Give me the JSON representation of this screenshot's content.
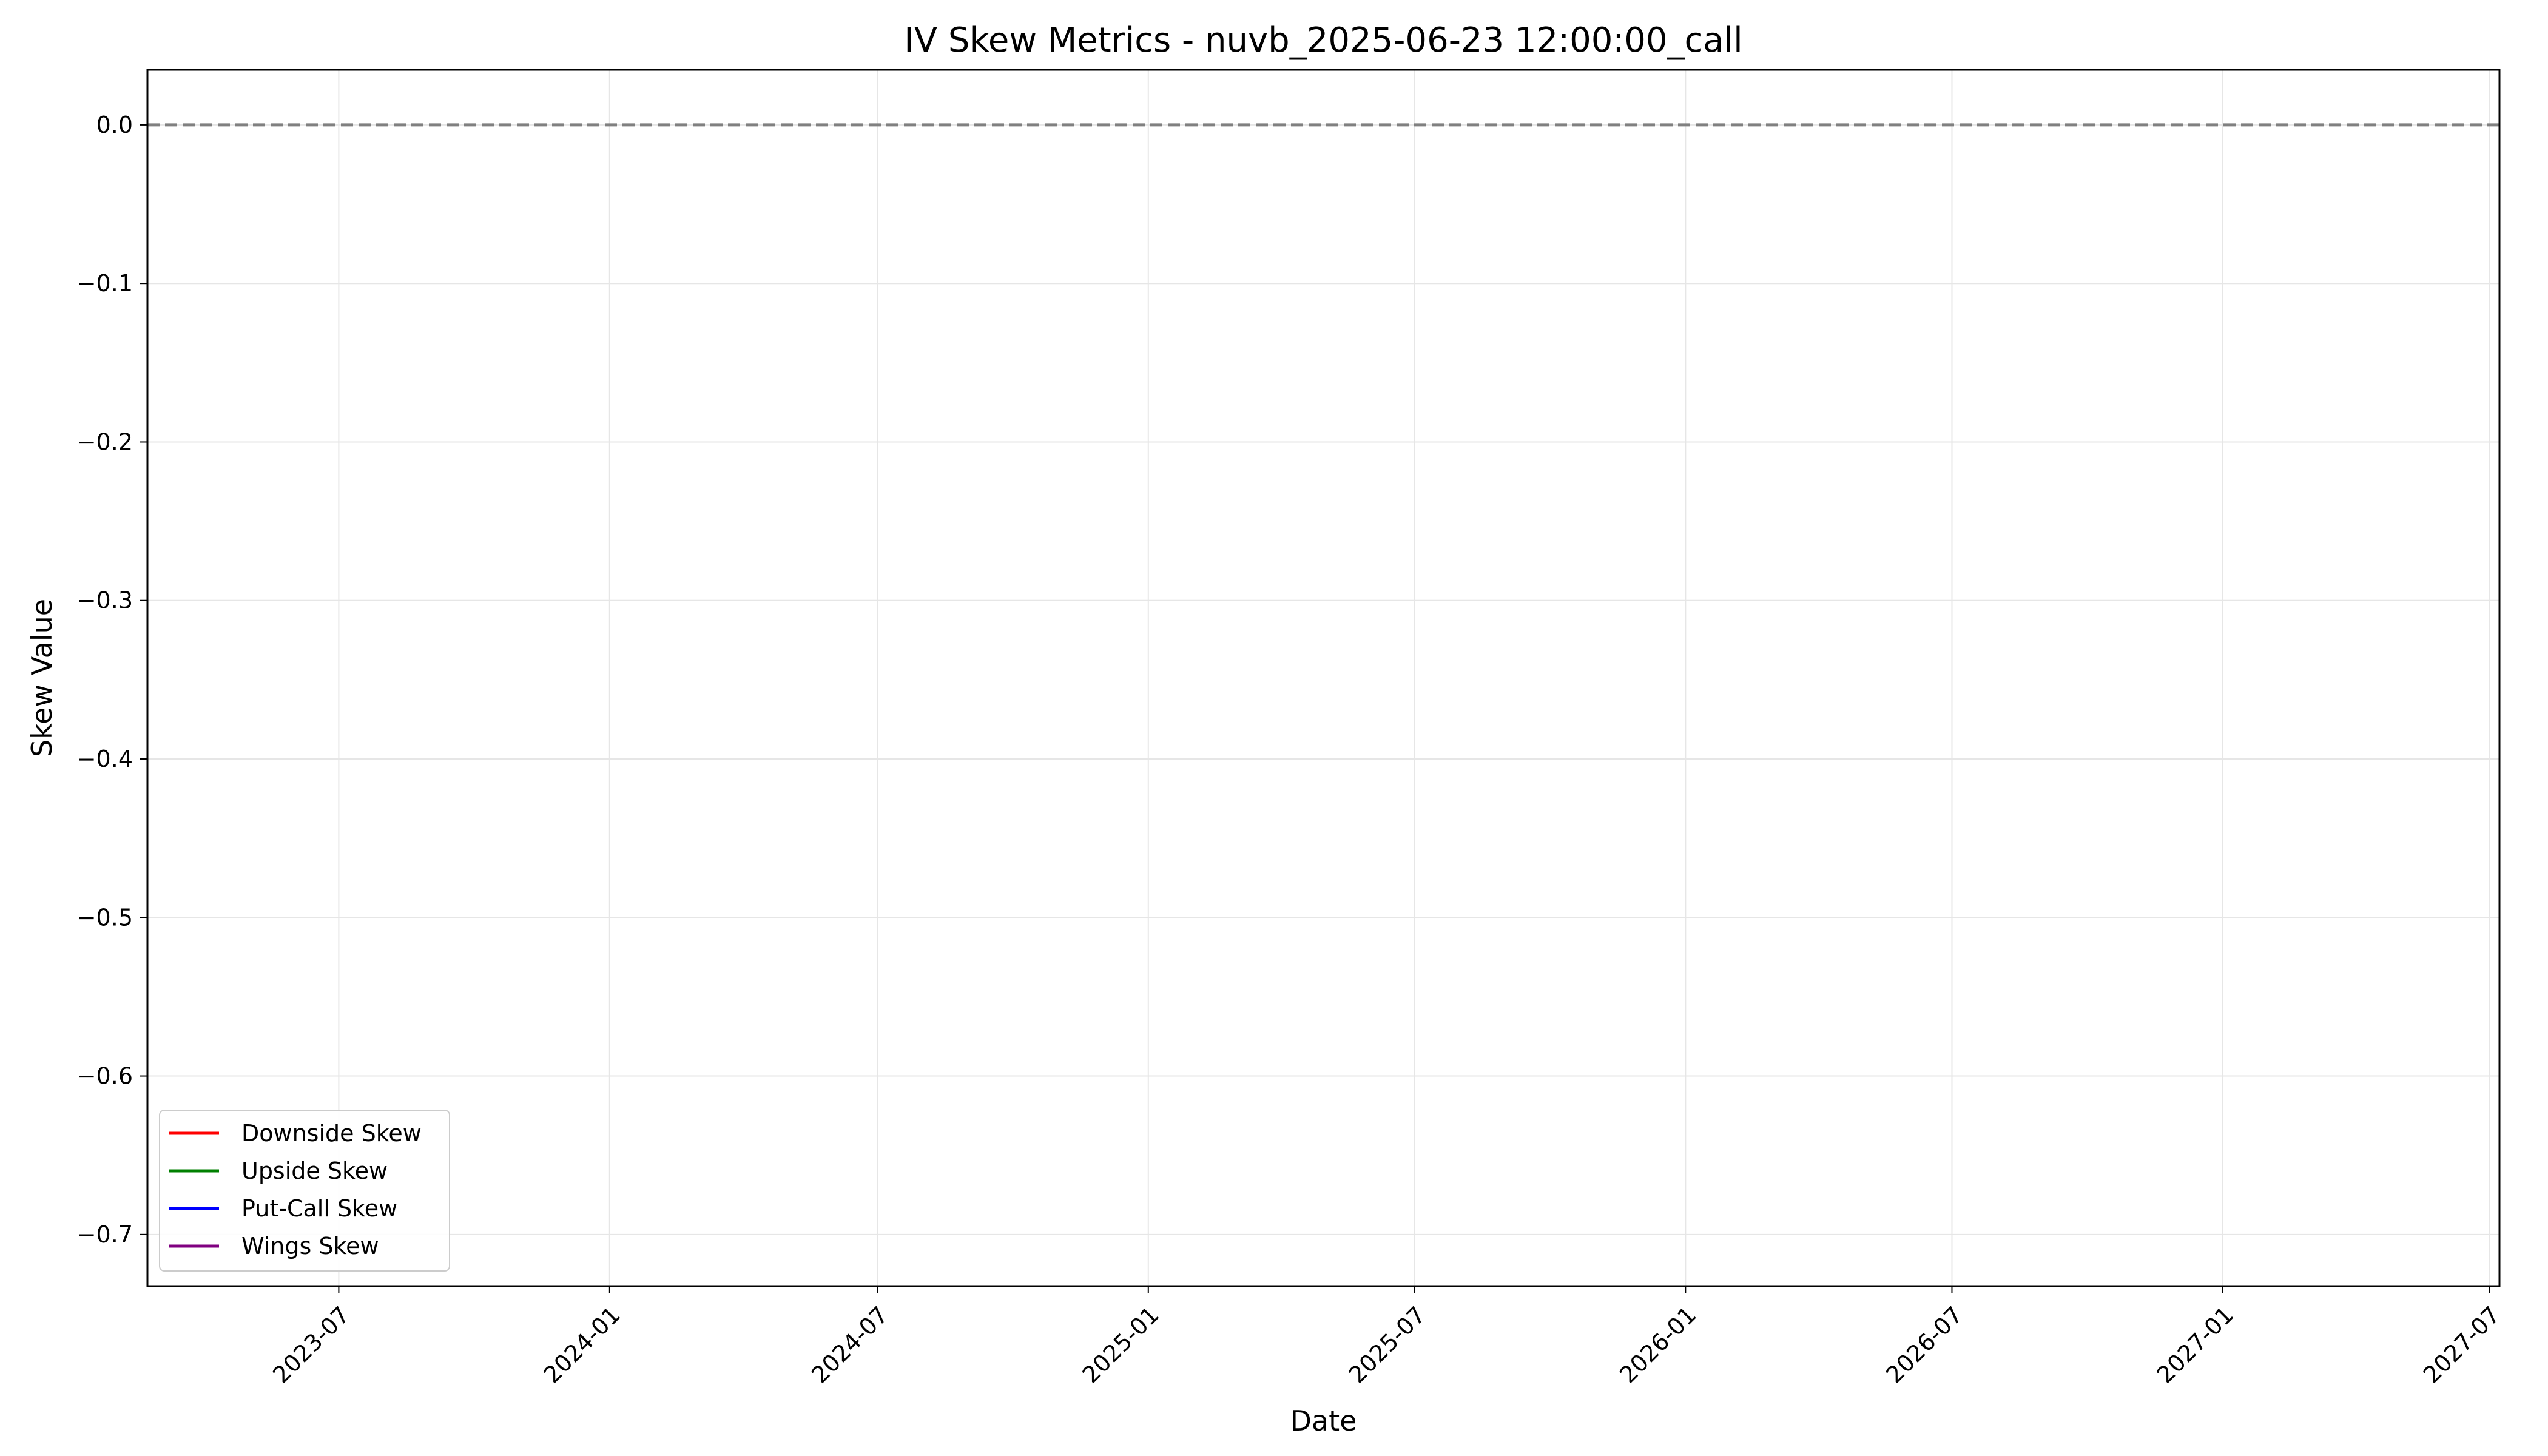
{
  "chart_data": {
    "type": "line",
    "title": "IV Skew Metrics - nuvb_2025-06-23 12:00:00_call",
    "xlabel": "Date",
    "ylabel": "Skew Value",
    "x_ticks": [
      "2023-07",
      "2024-01",
      "2024-07",
      "2025-01",
      "2025-07",
      "2026-01",
      "2026-07",
      "2027-01",
      "2027-07"
    ],
    "y_ticks": [
      "0.0",
      "−0.1",
      "−0.2",
      "−0.3",
      "−0.4",
      "−0.5",
      "−0.6",
      "−0.7"
    ],
    "xlim": [
      "2023-02-21",
      "2027-07-08"
    ],
    "ylim": [
      -0.7326,
      0.0348
    ],
    "grid": true,
    "legend_position": "lower-left",
    "reference_line": {
      "y": 0.0,
      "style": "dashed",
      "color": "#808080"
    },
    "series": [
      {
        "name": "Downside Skew",
        "color": "#ff0000",
        "points": []
      },
      {
        "name": "Upside Skew",
        "color": "#008000",
        "points": []
      },
      {
        "name": "Put-Call Skew",
        "color": "#0000ff",
        "points": []
      },
      {
        "name": "Wings Skew",
        "color": "#800080",
        "points": []
      }
    ]
  }
}
